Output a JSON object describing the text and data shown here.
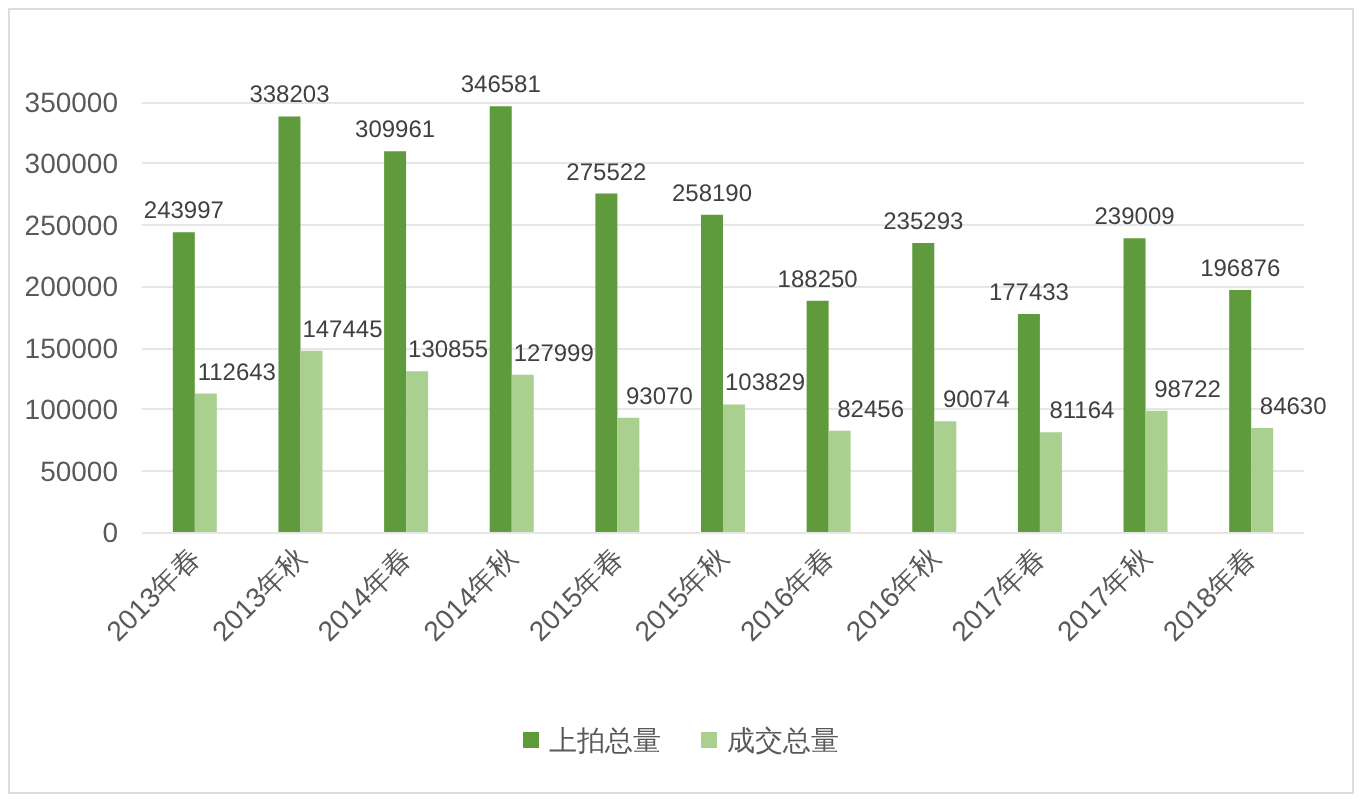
{
  "chart_data": {
    "type": "bar",
    "categories": [
      "2013年春",
      "2013年秋",
      "2014年春",
      "2014年秋",
      "2015年春",
      "2015年秋",
      "2016年春",
      "2016年秋",
      "2017年春",
      "2017年秋",
      "2018年春"
    ],
    "series": [
      {
        "name": "上拍总量",
        "color": "#5f9a3c",
        "values": [
          243997,
          338203,
          309961,
          346581,
          275522,
          258190,
          188250,
          235293,
          177433,
          239009,
          196876
        ]
      },
      {
        "name": "成交总量",
        "color": "#a9d08e",
        "values": [
          112643,
          147445,
          130855,
          127999,
          93070,
          103829,
          82456,
          90074,
          81164,
          98722,
          84630
        ]
      }
    ],
    "ylim": [
      0,
      350000
    ],
    "yticks": [
      0,
      50000,
      100000,
      150000,
      200000,
      250000,
      300000,
      350000
    ],
    "grid": "y",
    "legend": "bottom",
    "data_labels": true
  }
}
